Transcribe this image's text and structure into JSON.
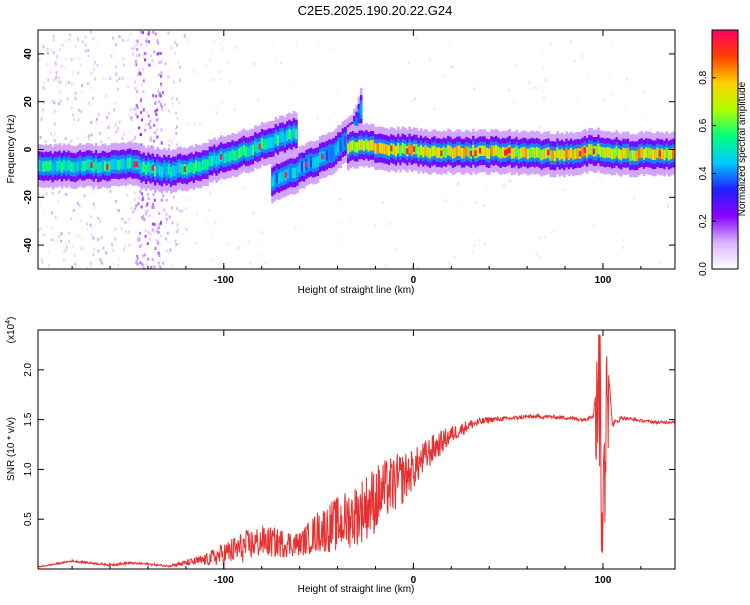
{
  "title": "C2E5.2025.190.20.22.G24",
  "chart_data": [
    {
      "type": "heatmap",
      "xlabel": "Height of straight line (km)",
      "ylabel": "Frequency (Hz)",
      "xlim": [
        -198,
        138
      ],
      "ylim": [
        -50,
        50
      ],
      "xticks": [
        -100,
        0,
        100
      ],
      "xtick_labels": [
        "-100",
        "0",
        "100"
      ],
      "yticks": [
        -40,
        -20,
        0,
        20,
        40
      ],
      "ytick_labels": [
        "-40",
        "-20",
        "0",
        "20",
        "40"
      ],
      "colorbar": {
        "label": "Normalized spectral amplitude",
        "range": [
          0,
          1
        ],
        "ticks": [
          0.0,
          0.2,
          0.4,
          0.6,
          0.8
        ],
        "tick_labels": [
          "0.0",
          "0.2",
          "0.4",
          "0.6",
          "0.8"
        ],
        "colormap": [
          "#ffffff",
          "#d9b3ff",
          "#8a00ff",
          "#2020ff",
          "#00ccff",
          "#00ff80",
          "#b0ff00",
          "#ffd000",
          "#ff4000",
          "#ff0066"
        ]
      },
      "ridges": [
        {
          "x": [
            -198,
            -175,
            -160,
            -150,
            -140,
            -130,
            -120,
            -110,
            -100,
            -90,
            -80,
            -70,
            -62
          ],
          "y": [
            -7,
            -7,
            -7,
            -6,
            -8,
            -9,
            -8,
            -6,
            -3,
            -1,
            2,
            5,
            7
          ],
          "amplitude": 0.6
        },
        {
          "x": [
            -75,
            -65,
            -55,
            -45,
            -38,
            -32,
            -28
          ],
          "y": [
            -13,
            -10,
            -6,
            -2,
            2,
            7,
            17
          ],
          "amplitude": 0.5
        },
        {
          "x": [
            -35,
            -25,
            -15,
            -5,
            10,
            30,
            50,
            70,
            85,
            95,
            110,
            138
          ],
          "y": [
            1,
            2,
            0,
            0,
            -1,
            -1,
            -1,
            -2,
            -2,
            0,
            -2,
            -2
          ],
          "amplitude": 0.85
        }
      ]
    },
    {
      "type": "line",
      "xlabel": "Height of straight line (km)",
      "ylabel": "SNR (10 * v/v)",
      "y_multiplier": "(x10",
      "y_multiplier_exp": "4",
      "y_multiplier_close": ")",
      "xlim": [
        -198,
        138
      ],
      "ylim": [
        0,
        24000
      ],
      "xticks": [
        -100,
        0,
        100
      ],
      "xtick_labels": [
        "-100",
        "0",
        "100"
      ],
      "yticks": [
        5000,
        10000,
        15000,
        20000
      ],
      "ytick_labels": [
        "0.5",
        "1.0",
        "1.5",
        "2.0"
      ],
      "series": [
        {
          "color": "#e83030",
          "x": [
            -198,
            -180,
            -170,
            -160,
            -150,
            -140,
            -130,
            -120,
            -110,
            -100,
            -90,
            -80,
            -70,
            -60,
            -50,
            -40,
            -30,
            -20,
            -15,
            -10,
            -5,
            0,
            10,
            20,
            30,
            40,
            50,
            60,
            70,
            80,
            90,
            95,
            98,
            100,
            102,
            105,
            110,
            120,
            130,
            138
          ],
          "y": [
            200,
            800,
            600,
            400,
            600,
            500,
            300,
            600,
            900,
            1500,
            2200,
            2800,
            2600,
            2500,
            3800,
            4500,
            5500,
            7000,
            8000,
            8500,
            9200,
            10000,
            12000,
            13500,
            14500,
            15000,
            15100,
            15300,
            15300,
            15200,
            15000,
            15500,
            21000,
            2000,
            22000,
            14500,
            15200,
            14900,
            14700,
            14800
          ],
          "noise": [
            50,
            100,
            100,
            100,
            120,
            100,
            100,
            300,
            600,
            1200,
            1600,
            1600,
            1500,
            1200,
            2200,
            2800,
            3200,
            3500,
            3000,
            3000,
            2600,
            2000,
            1500,
            900,
            500,
            300,
            200,
            200,
            200,
            200,
            200,
            300,
            200,
            200,
            200,
            300,
            200,
            150,
            150,
            150
          ]
        }
      ]
    }
  ]
}
